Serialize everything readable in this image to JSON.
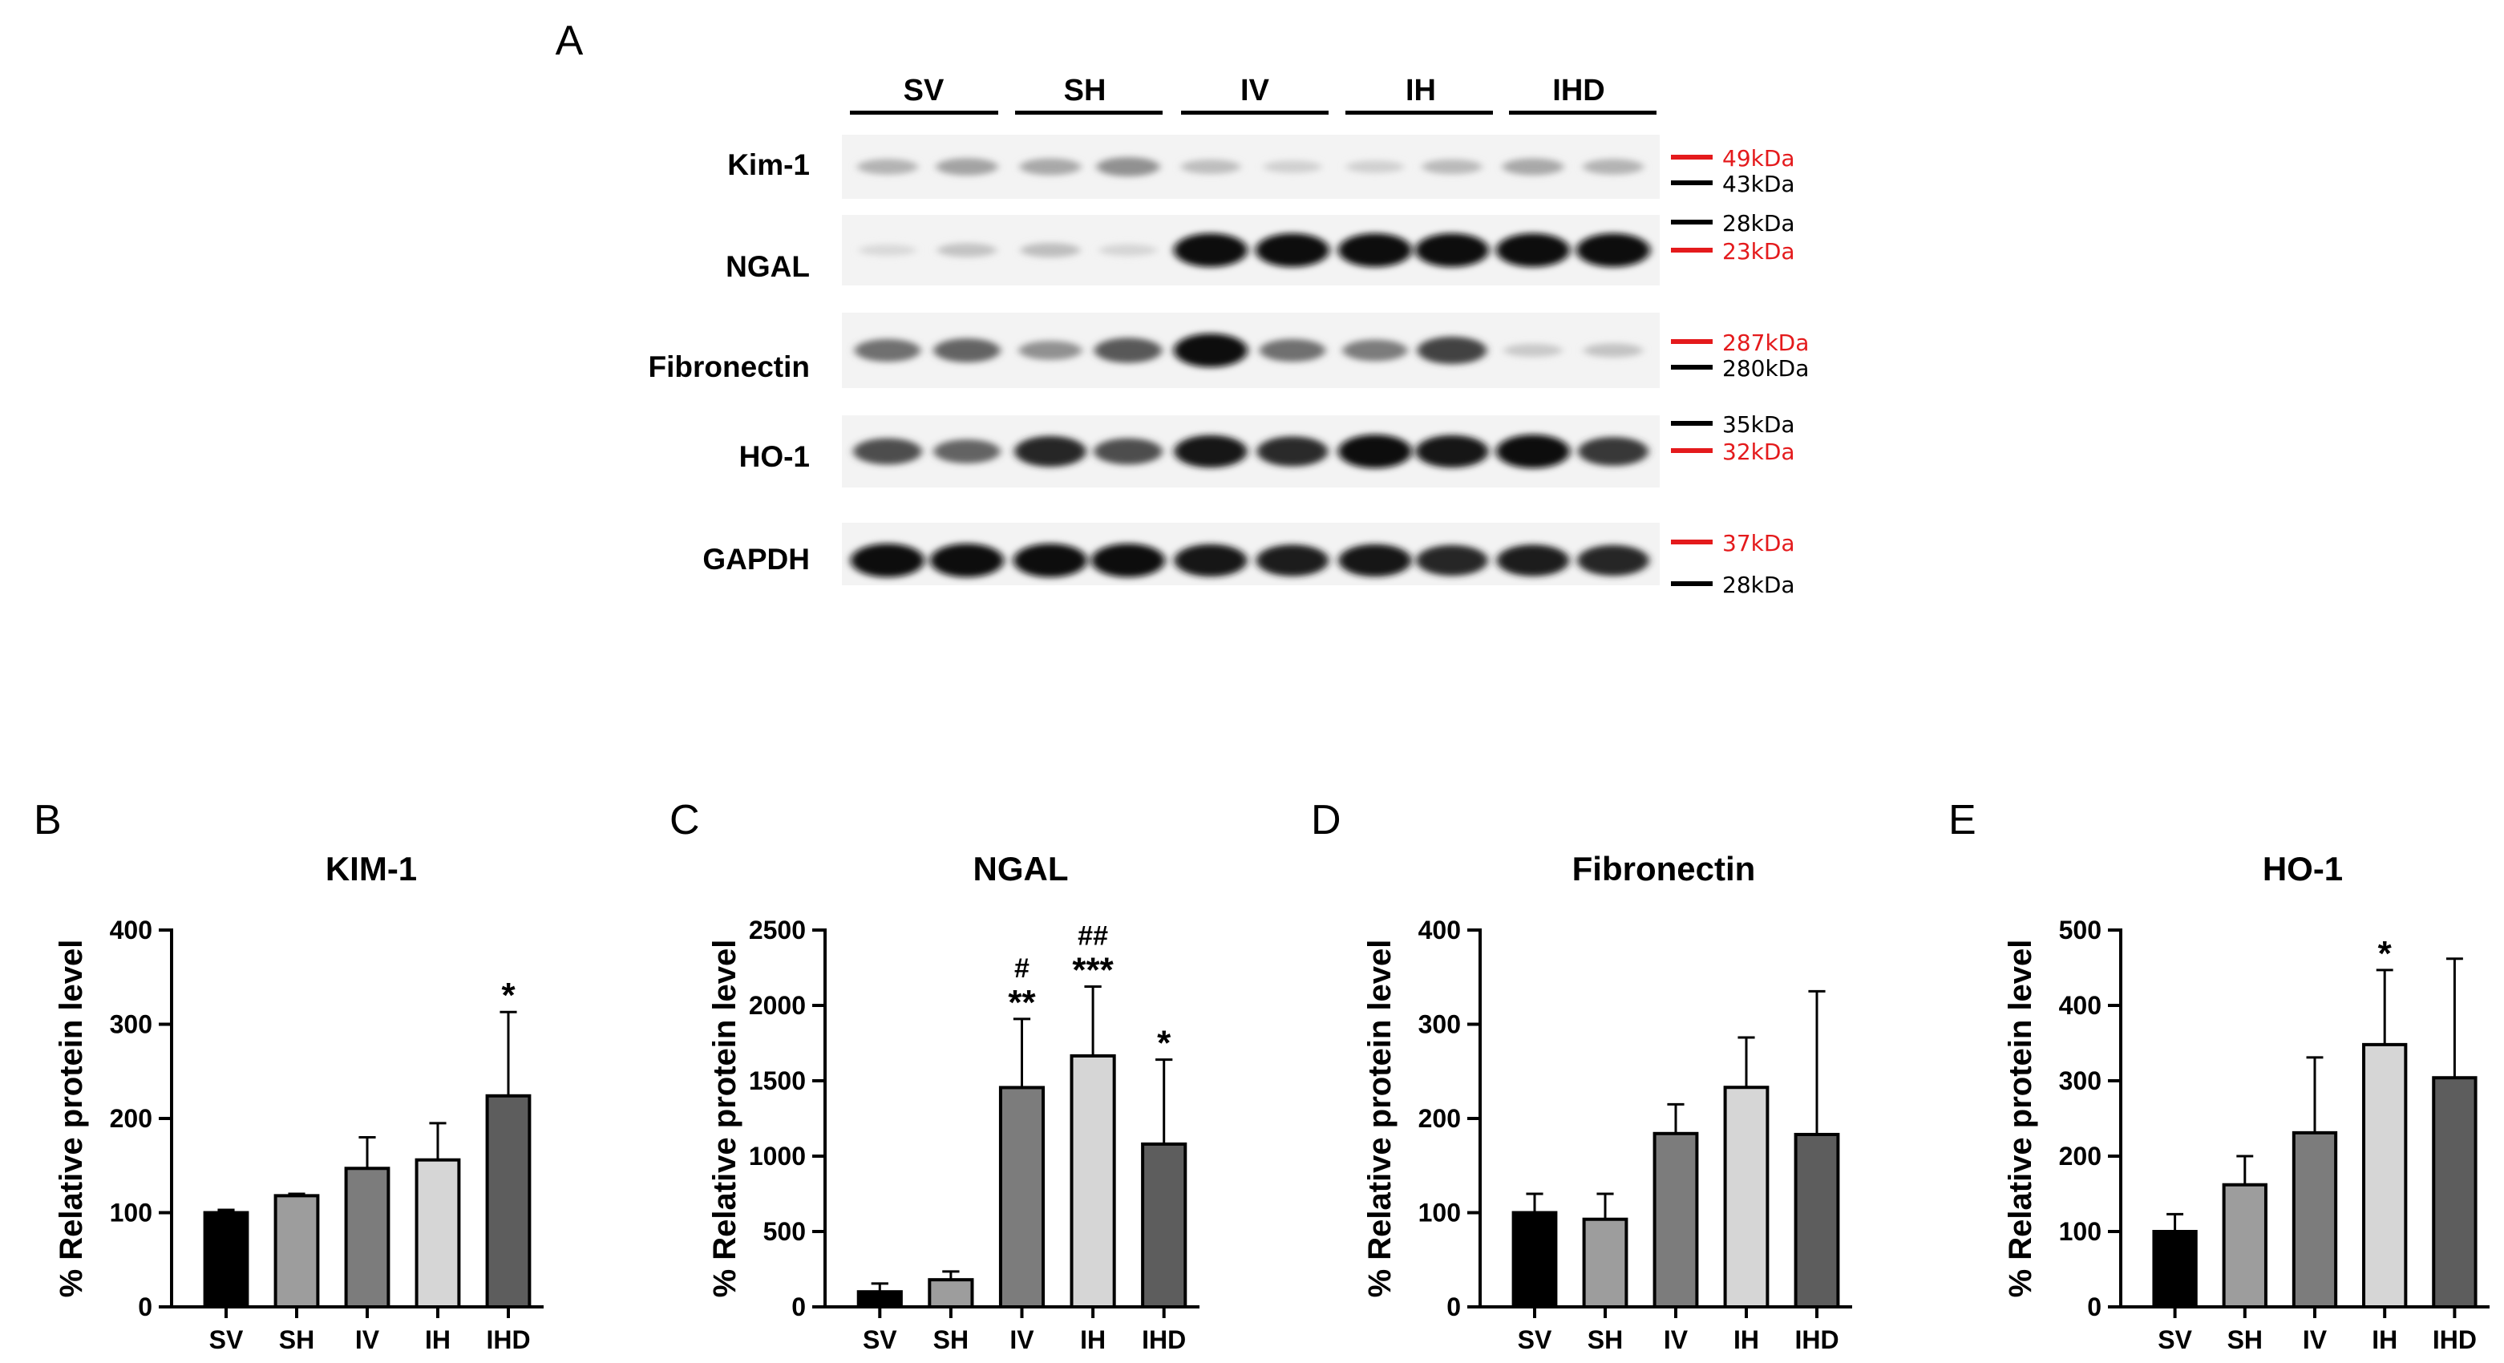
{
  "panel_a": {
    "label": "A",
    "groups": [
      "SV",
      "SH",
      "IV",
      "IH",
      "IHD"
    ],
    "rows": [
      {
        "name": "Kim-1",
        "markers": [
          {
            "text": "49kDa",
            "color": "#e41a1c"
          },
          {
            "text": "43kDa",
            "color": "#000000"
          }
        ]
      },
      {
        "name": "NGAL",
        "markers": [
          {
            "text": "28kDa",
            "color": "#000000"
          },
          {
            "text": "23kDa",
            "color": "#e41a1c"
          }
        ]
      },
      {
        "name": "Fibronectin",
        "markers": [
          {
            "text": "287kDa",
            "color": "#e41a1c"
          },
          {
            "text": "280kDa",
            "color": "#000000"
          }
        ]
      },
      {
        "name": "HO-1",
        "markers": [
          {
            "text": "35kDa",
            "color": "#000000"
          },
          {
            "text": "32kDa",
            "color": "#e41a1c"
          }
        ]
      },
      {
        "name": "GAPDH",
        "markers": [
          {
            "text": "37kDa",
            "color": "#e41a1c"
          },
          {
            "text": "28kDa",
            "color": "#000000"
          }
        ]
      }
    ],
    "band_intensity": [
      [
        0.25,
        0.32,
        0.3,
        0.4,
        0.2,
        0.12,
        0.12,
        0.22,
        0.3,
        0.25
      ],
      [
        0.08,
        0.18,
        0.2,
        0.1,
        1.0,
        1.0,
        1.0,
        1.0,
        1.0,
        1.0
      ],
      [
        0.55,
        0.6,
        0.4,
        0.65,
        1.0,
        0.55,
        0.5,
        0.75,
        0.15,
        0.18
      ],
      [
        0.7,
        0.6,
        0.88,
        0.7,
        0.95,
        0.85,
        1.0,
        0.95,
        1.0,
        0.8
      ],
      [
        1.0,
        1.0,
        1.0,
        1.0,
        0.95,
        0.92,
        0.95,
        0.88,
        0.92,
        0.88
      ]
    ]
  },
  "chart_data": [
    {
      "panel": "B",
      "type": "bar",
      "title": "KIM-1",
      "ylabel": "% Relative protein level",
      "categories": [
        "SV",
        "SH",
        "IV",
        "IH",
        "IHD"
      ],
      "values": [
        100,
        118,
        147,
        156,
        224
      ],
      "errors": [
        3,
        2,
        33,
        39,
        89
      ],
      "ylim": [
        0,
        400
      ],
      "yticks": [
        0,
        100,
        200,
        300,
        400
      ],
      "annotations": [
        {
          "index": 4,
          "lines": [
            "*"
          ]
        }
      ]
    },
    {
      "panel": "C",
      "type": "bar",
      "title": "NGAL",
      "ylabel": "% Relative protein level",
      "categories": [
        "SV",
        "SH",
        "IV",
        "IH",
        "IHD"
      ],
      "values": [
        100,
        180,
        1455,
        1665,
        1080
      ],
      "errors": [
        55,
        55,
        455,
        460,
        560
      ],
      "ylim": [
        0,
        2500
      ],
      "yticks": [
        0,
        500,
        1000,
        1500,
        2000,
        2500
      ],
      "annotations": [
        {
          "index": 2,
          "lines": [
            "#",
            "**"
          ]
        },
        {
          "index": 3,
          "lines": [
            "##",
            "***"
          ]
        },
        {
          "index": 4,
          "lines": [
            "*"
          ]
        }
      ]
    },
    {
      "panel": "D",
      "type": "bar",
      "title": "Fibronectin",
      "ylabel": "% Relative protein level",
      "categories": [
        "SV",
        "SH",
        "IV",
        "IH",
        "IHD"
      ],
      "values": [
        100,
        93,
        184,
        233,
        183
      ],
      "errors": [
        20,
        27,
        31,
        53,
        152
      ],
      "ylim": [
        0,
        400
      ],
      "yticks": [
        0,
        100,
        200,
        300,
        400
      ],
      "annotations": []
    },
    {
      "panel": "E",
      "type": "bar",
      "title": "HO-1",
      "ylabel": "% Relative protein level",
      "categories": [
        "SV",
        "SH",
        "IV",
        "IH",
        "IHD"
      ],
      "values": [
        100,
        162,
        231,
        348,
        304
      ],
      "errors": [
        23,
        38,
        100,
        99,
        158
      ],
      "ylim": [
        0,
        500
      ],
      "yticks": [
        0,
        100,
        200,
        300,
        400,
        500
      ],
      "annotations": [
        {
          "index": 3,
          "lines": [
            "*"
          ]
        }
      ]
    }
  ],
  "colors": {
    "bars": [
      "#000000",
      "#9d9d9d",
      "#7c7c7c",
      "#d6d6d6",
      "#5d5d5d"
    ],
    "marker_red": "#e41a1c"
  }
}
